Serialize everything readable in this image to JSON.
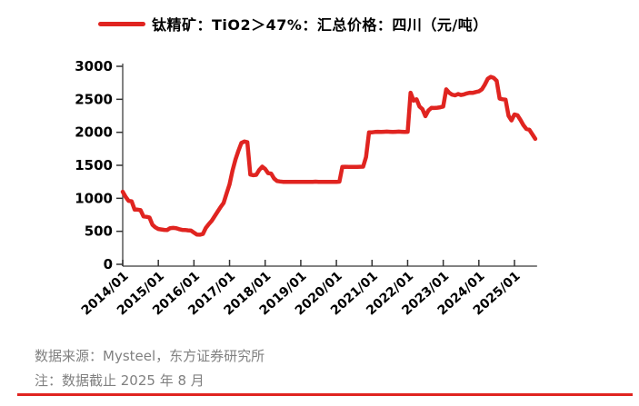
{
  "legend": {
    "label": "钛精矿：TiO2＞47%：汇总价格：四川（元/吨）",
    "marker_color": "#e02420"
  },
  "chart_data": {
    "type": "line",
    "title": "",
    "xlabel": "",
    "ylabel": "",
    "ylim": [
      0,
      3000
    ],
    "y_ticks": [
      0,
      500,
      1000,
      1500,
      2000,
      2500,
      3000
    ],
    "x_tick_labels": [
      "2014/01",
      "2015/01",
      "2016/01",
      "2017/01",
      "2018/01",
      "2019/01",
      "2020/01",
      "2021/01",
      "2022/01",
      "2023/01",
      "2024/01",
      "2025/01"
    ],
    "grid": false,
    "legend_position": "top",
    "x_start": "2014/01",
    "x_end": "2025/08",
    "x_interval": "monthly",
    "series": [
      {
        "name": "钛精矿：TiO2＞47%：汇总价格：四川（元/吨）",
        "color": "#e02420",
        "values": [
          1100,
          1020,
          960,
          955,
          830,
          828,
          820,
          725,
          720,
          710,
          600,
          560,
          535,
          528,
          522,
          520,
          548,
          552,
          548,
          532,
          522,
          520,
          515,
          510,
          480,
          452,
          448,
          460,
          550,
          610,
          660,
          730,
          800,
          870,
          930,
          1075,
          1210,
          1420,
          1590,
          1720,
          1840,
          1860,
          1850,
          1360,
          1350,
          1355,
          1430,
          1480,
          1445,
          1380,
          1375,
          1300,
          1262,
          1255,
          1250,
          1250,
          1248,
          1248,
          1250,
          1250,
          1250,
          1250,
          1250,
          1248,
          1250,
          1252,
          1250,
          1250,
          1248,
          1250,
          1250,
          1250,
          1250,
          1252,
          1475,
          1478,
          1475,
          1475,
          1476,
          1475,
          1478,
          1480,
          1625,
          2000,
          2000,
          2005,
          2008,
          2005,
          2008,
          2010,
          2008,
          2005,
          2008,
          2010,
          2008,
          2005,
          2008,
          2600,
          2480,
          2500,
          2390,
          2350,
          2245,
          2330,
          2370,
          2368,
          2372,
          2380,
          2390,
          2650,
          2600,
          2570,
          2560,
          2580,
          2565,
          2575,
          2590,
          2600,
          2598,
          2610,
          2620,
          2650,
          2720,
          2810,
          2840,
          2825,
          2780,
          2510,
          2500,
          2495,
          2250,
          2180,
          2270,
          2258,
          2190,
          2110,
          2050,
          2040,
          1970,
          1900
        ]
      }
    ]
  },
  "footer": {
    "source": "数据来源：Mysteel，东方证券研究所",
    "note": "注：数据截止 2025 年 8 月",
    "rule_color": "#e02420"
  }
}
